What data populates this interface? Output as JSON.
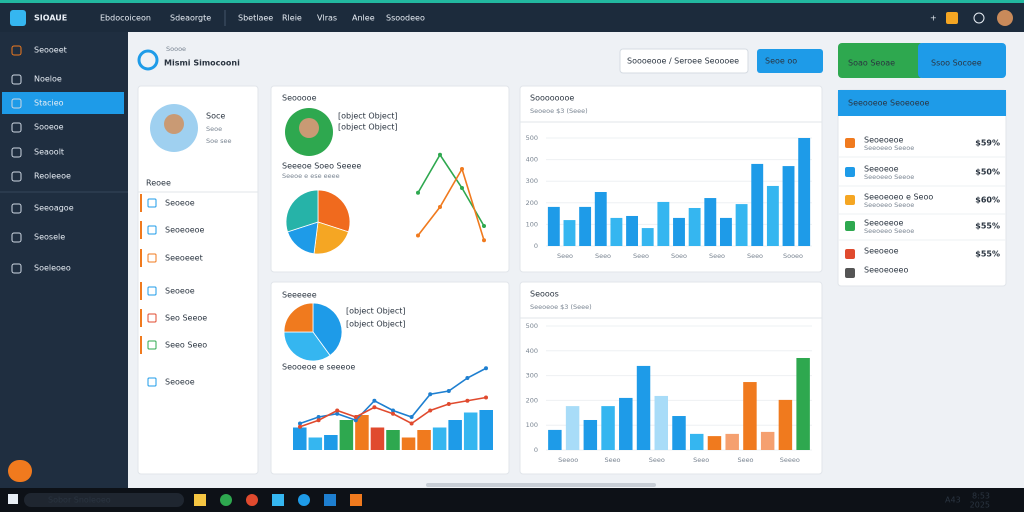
{
  "topbar": {
    "brand": "SIOAUE",
    "menu": [
      "Ebdocoiceon",
      "Sdeaorgte",
      "Sbetlaee",
      "Rleie",
      "Vlras",
      "Anlee",
      "Ssoodeeo"
    ]
  },
  "sidebar": {
    "items": [
      "Seooeet",
      "Noeloe",
      "Stacieo",
      "Sooeoe",
      "Seaoolt",
      "Reoleeoe",
      "Seeoagoe",
      "Seosele",
      "Soeleoeo"
    ],
    "active": 2
  },
  "header": {
    "overline": "Soooe",
    "title": "Mismi Simocooni",
    "dropdown": "Soooeooe / Seroee Seoooee",
    "button": "Seoe oo",
    "actions": [
      "Soao Seoae",
      "Ssoo Socoee"
    ]
  },
  "profile": {
    "name": "Soce",
    "lines": [
      "Seoe",
      "Soe see"
    ],
    "section": "Reoee",
    "items": [
      "Seoeoe",
      "Seoeoeoe",
      "Seeoeeet",
      "Seoeoe",
      "Seo Seeoe",
      "Seeo Seeo",
      "Seoeoe"
    ]
  },
  "panels": [
    {
      "title": "Seooooe",
      "lines": [
        {
          "color": "#2ea84f",
          "values": [
            55,
            95,
            60,
            20
          ]
        },
        {
          "color": "#f07a1e",
          "values": [
            10,
            40,
            80,
            5
          ]
        }
      ],
      "caption": "Seeeoe Soeo Seeee",
      "sub": "Seeoe e ese eeee",
      "pie": {
        "values": [
          30,
          22,
          18,
          30
        ],
        "colors": [
          "#f06a1e",
          "#f5a623",
          "#1e9be8",
          "#26b3a8"
        ]
      },
      "ylim": [
        0,
        100
      ]
    },
    {
      "title": "Seeeeee",
      "lines": [
        {
          "color": "#1e7fd0",
          "values": [
            10,
            20,
            25,
            15,
            45,
            30,
            20,
            55,
            60,
            80,
            95
          ]
        },
        {
          "color": "#e04a2e",
          "values": [
            5,
            15,
            30,
            20,
            35,
            25,
            10,
            30,
            40,
            45,
            50
          ]
        }
      ],
      "caption": "Seooeoe e seeeoe",
      "pie": {
        "values": [
          40,
          35,
          25
        ],
        "colors": [
          "#1e9be8",
          "#35b6f0",
          "#f07a1e"
        ]
      },
      "ylim": [
        0,
        100
      ],
      "bars": {
        "values": [
          45,
          25,
          30,
          60,
          70,
          45,
          40,
          25,
          40,
          45,
          60,
          75,
          80
        ],
        "colors": [
          "#1e9be8",
          "#35b6f0",
          "#1e9be8",
          "#2ea84f",
          "#f07a1e",
          "#e04a2e",
          "#2ea84f",
          "#f07a1e",
          "#f07a1e",
          "#35b6f0",
          "#1e9be8",
          "#35b6f0",
          "#1e9be8"
        ]
      }
    }
  ],
  "charts": [
    {
      "title": "Soooooooe",
      "subtitle": "Seoeoe $3 (Seee)",
      "categories": [
        "Seeo",
        "Seeo",
        "Seeo",
        "Soeo",
        "Seeo",
        "Seeo",
        "Sooeo"
      ],
      "ylim": [
        0,
        500
      ],
      "yticks": [
        0,
        100,
        200,
        300,
        400,
        500
      ],
      "values": [
        181,
        120,
        181,
        250,
        130,
        139,
        83,
        204,
        130,
        176,
        222,
        130,
        194,
        380,
        278,
        370,
        500
      ],
      "colors": [
        "#1e9be8",
        "#35b6f0",
        "#1e9be8",
        "#1e9be8",
        "#35b6f0",
        "#1e9be8",
        "#35b6f0",
        "#35b6f0",
        "#1e9be8",
        "#35b6f0",
        "#1e9be8",
        "#1e9be8",
        "#35b6f0",
        "#1e9be8",
        "#35b6f0",
        "#1e9be8",
        "#1e9be8"
      ]
    },
    {
      "title": "Seooos",
      "subtitle": "Seeoeoe $3 (Seee)",
      "categories": [
        "Seeoo",
        "Seeo",
        "Seeo",
        "Seeo",
        "Seeo",
        "Seeeo"
      ],
      "ylim": [
        0,
        500
      ],
      "yticks": [
        0,
        100,
        200,
        300,
        400,
        500
      ],
      "values": [
        81,
        177,
        121,
        177,
        210,
        339,
        218,
        137,
        65,
        56,
        65,
        274,
        73,
        202,
        371
      ],
      "colors": [
        "#1e9be8",
        "#a8dcf8",
        "#1e9be8",
        "#35b6f0",
        "#1e9be8",
        "#1e9be8",
        "#a8dcf8",
        "#1e9be8",
        "#35b6f0",
        "#f07a1e",
        "#f5a070",
        "#f07a1e",
        "#f5a070",
        "#f07a1e",
        "#2ea84f"
      ]
    }
  ],
  "feed": {
    "title": "Seeooeoe Seoeoeoe",
    "items": [
      {
        "label": "Seoeoeoe",
        "sub": "Seeoeeo Seeoe",
        "value": "$59%",
        "color": "#f07a1e"
      },
      {
        "label": "Seeoeoe",
        "sub": "Seeoeeo Seeoe",
        "value": "$50%",
        "color": "#1e9be8"
      },
      {
        "label": "Seeoeoeo e Seoo",
        "sub": "Seeoeeo Seeoe",
        "value": "$60%",
        "color": "#f5a623"
      },
      {
        "label": "Seeoeeoe",
        "sub": "Seeoeeo Seeoe",
        "value": "$55%",
        "color": "#2ea84f"
      },
      {
        "label": "Seeoeoe",
        "sub": "",
        "value": "$55%",
        "color": "#e04a2e"
      },
      {
        "label": "Seeoeoeeo",
        "sub": "",
        "value": "",
        "color": "#555"
      }
    ]
  },
  "taskbar": {
    "search": "Sobor Snoleoeo",
    "lang": "A43",
    "time": "8:53",
    "date": "2025"
  }
}
